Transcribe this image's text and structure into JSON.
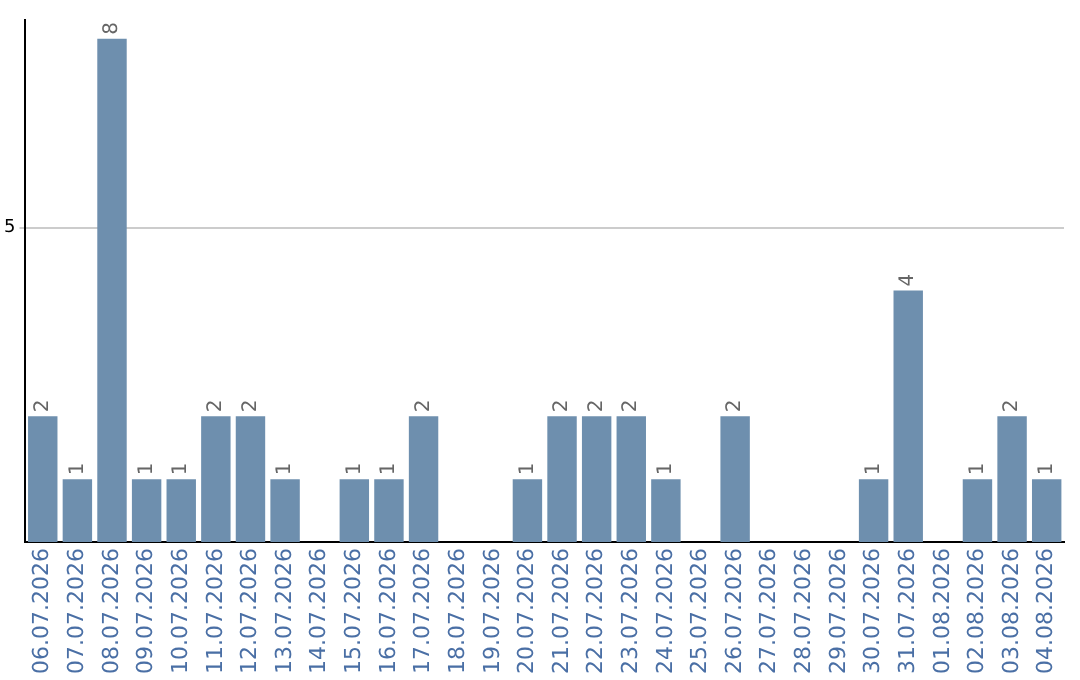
{
  "chart_data": {
    "type": "bar",
    "categories": [
      "06.07.2026",
      "07.07.2026",
      "08.07.2026",
      "09.07.2026",
      "10.07.2026",
      "11.07.2026",
      "12.07.2026",
      "13.07.2026",
      "14.07.2026",
      "15.07.2026",
      "16.07.2026",
      "17.07.2026",
      "18.07.2026",
      "19.07.2026",
      "20.07.2026",
      "21.07.2026",
      "22.07.2026",
      "23.07.2026",
      "24.07.2026",
      "25.07.2026",
      "26.07.2026",
      "27.07.2026",
      "28.07.2026",
      "29.07.2026",
      "30.07.2026",
      "31.07.2026",
      "01.08.2026",
      "02.08.2026",
      "03.08.2026",
      "04.08.2026"
    ],
    "values": [
      2,
      1,
      8,
      1,
      1,
      2,
      2,
      1,
      0,
      1,
      1,
      2,
      0,
      0,
      1,
      2,
      2,
      2,
      1,
      0,
      2,
      0,
      0,
      0,
      1,
      4,
      0,
      1,
      2,
      1
    ],
    "value_labels": [
      "2",
      "1",
      "8",
      "1",
      "1",
      "2",
      "2",
      "1",
      null,
      "1",
      "1",
      "2",
      null,
      null,
      "1",
      "2",
      "2",
      "2",
      "1",
      null,
      "2",
      null,
      null,
      null,
      "1",
      "4",
      null,
      "1",
      "2",
      "1"
    ],
    "color": "#6e8fae",
    "ylim": [
      0,
      8.3
    ],
    "yticks": [
      5
    ],
    "grid": "y"
  }
}
